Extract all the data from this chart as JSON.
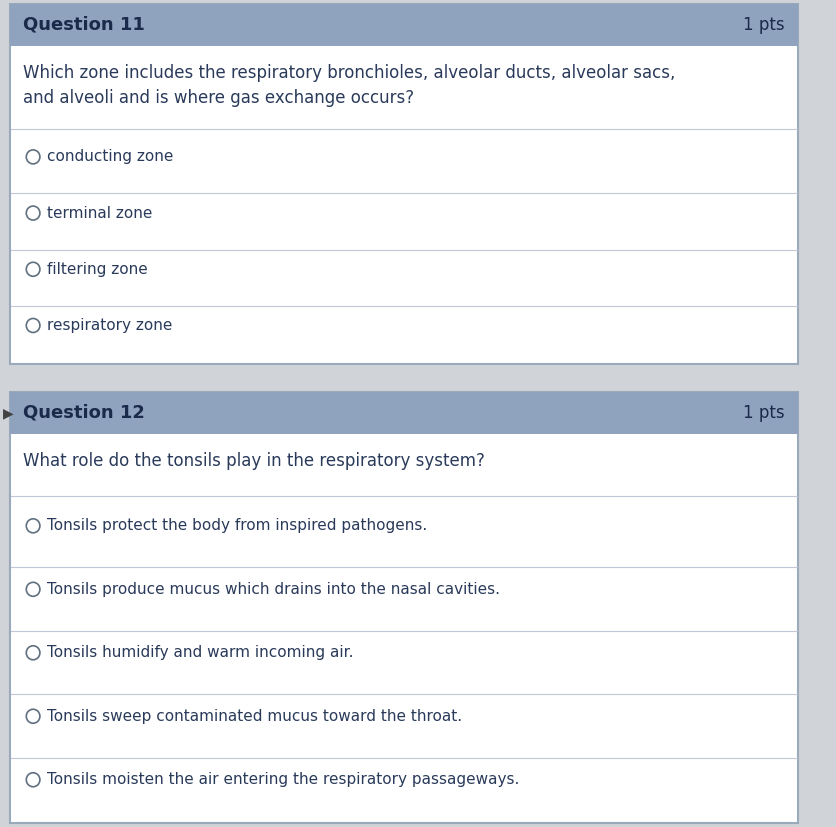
{
  "bg_color": "#d0d3d8",
  "card_bg": "#ffffff",
  "header_bg": "#8fa3bf",
  "header_text_color": "#1a2a4a",
  "body_text_color": "#2a3a5a",
  "option_text_color": "#2a3a5a",
  "divider_color": "#c0c8d8",
  "q11_header": "Question 11",
  "q11_pts": "1 pts",
  "q11_body": "Which zone includes the respiratory bronchioles, alveolar ducts, alveolar sacs,\nand alveoli and is where gas exchange occurs?",
  "q11_options": [
    "conducting zone",
    "terminal zone",
    "filtering zone",
    "respiratory zone"
  ],
  "q12_header": "Question 12",
  "q12_pts": "1 pts",
  "q12_body": "What role do the tonsils play in the respiratory system?",
  "q12_options": [
    "Tonsils protect the body from inspired pathogens.",
    "Tonsils produce mucus which drains into the nasal cavities.",
    "Tonsils humidify and warm incoming air.",
    "Tonsils sweep contaminated mucus toward the throat.",
    "Tonsils moisten the air entering the respiratory passageways."
  ],
  "arrow_color": "#555555",
  "header_font_size": 13,
  "pts_font_size": 12,
  "body_font_size": 12,
  "option_font_size": 11
}
